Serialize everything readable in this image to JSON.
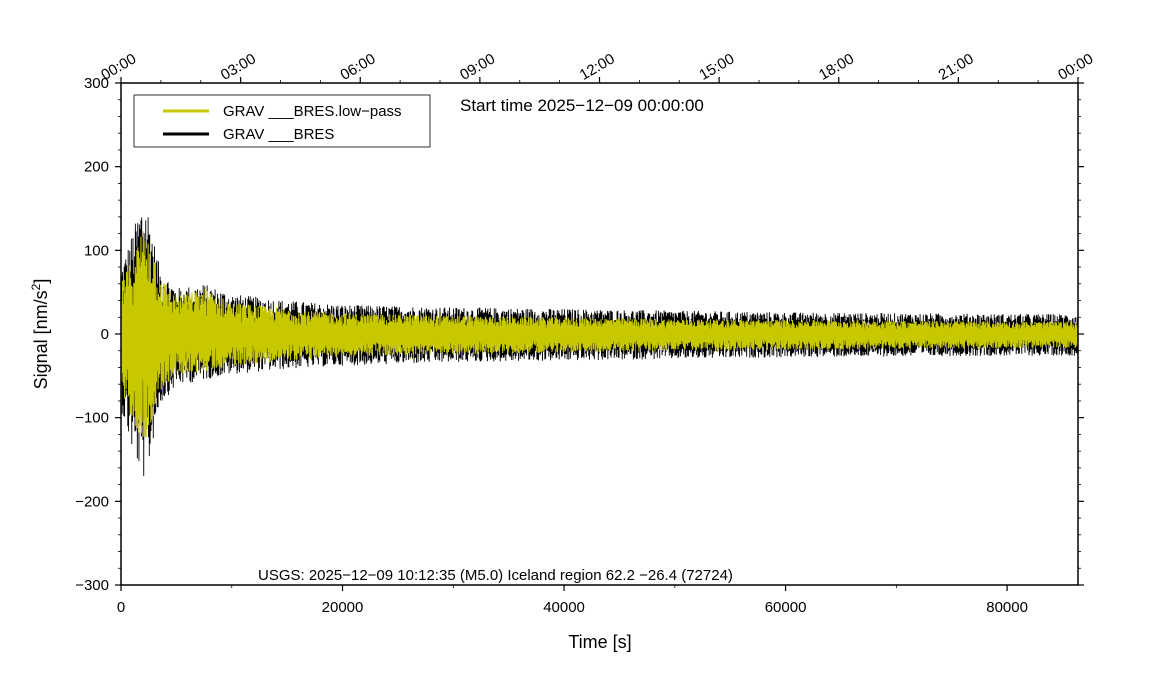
{
  "chart_data": {
    "type": "line",
    "title": "Start time 2025−12−09 00:00:00",
    "annotation": "USGS: 2025−12−09 10:12:35 (M5.0) Iceland region 62.2 −26.4 (72724)",
    "xlabel": "Time [s]",
    "ylabel_prefix": "Signal [nm/s",
    "ylabel_sup": "2",
    "ylabel_suffix": "]",
    "xlim": [
      0,
      86400
    ],
    "ylim": [
      -300,
      300
    ],
    "x_ticks": [
      0,
      20000,
      40000,
      60000,
      80000
    ],
    "x_tick_labels": [
      "0",
      "20000",
      "40000",
      "60000",
      "80000"
    ],
    "y_ticks": [
      -300,
      -200,
      -100,
      0,
      100,
      200,
      300
    ],
    "y_tick_labels": [
      "−300",
      "−200",
      "−100",
      "0",
      "100",
      "200",
      "300"
    ],
    "top_axis_ticks": [
      0,
      10800,
      21600,
      32400,
      43200,
      54000,
      64800,
      75600,
      86400
    ],
    "top_axis_labels": [
      "00:00",
      "03:00",
      "06:00",
      "09:00",
      "12:00",
      "15:00",
      "18:00",
      "21:00",
      "00:00"
    ],
    "legend_position": "top-left",
    "grid": false,
    "series": [
      {
        "name": "GRAV ___BRES.low−pass",
        "color": "#c8c800",
        "envelope": {
          "x": [
            0,
            1000,
            2000,
            2500,
            3000,
            3500,
            5000,
            7500,
            10000,
            15000,
            20000,
            30000,
            40000,
            50000,
            60000,
            70000,
            80000,
            86400
          ],
          "y_max": [
            60,
            90,
            130,
            120,
            95,
            70,
            45,
            55,
            38,
            30,
            25,
            22,
            20,
            18,
            17,
            16,
            15,
            15
          ],
          "y_min": [
            -70,
            -100,
            -130,
            -120,
            -95,
            -70,
            -48,
            -45,
            -38,
            -32,
            -27,
            -25,
            -22,
            -20,
            -19,
            -18,
            -17,
            -17
          ]
        }
      },
      {
        "name": "GRAV ___BRES",
        "color": "#000000",
        "envelope": {
          "x": [
            0,
            1000,
            2000,
            2500,
            3000,
            3500,
            5000,
            7500,
            10000,
            15000,
            20000,
            30000,
            40000,
            50000,
            60000,
            70000,
            80000,
            86400
          ],
          "y_max": [
            80,
            120,
            165,
            150,
            110,
            80,
            55,
            60,
            48,
            40,
            35,
            32,
            30,
            28,
            26,
            25,
            24,
            24
          ],
          "y_min": [
            -90,
            -140,
            -175,
            -160,
            -120,
            -85,
            -62,
            -55,
            -48,
            -42,
            -38,
            -34,
            -32,
            -30,
            -28,
            -27,
            -26,
            -26
          ]
        }
      }
    ]
  }
}
